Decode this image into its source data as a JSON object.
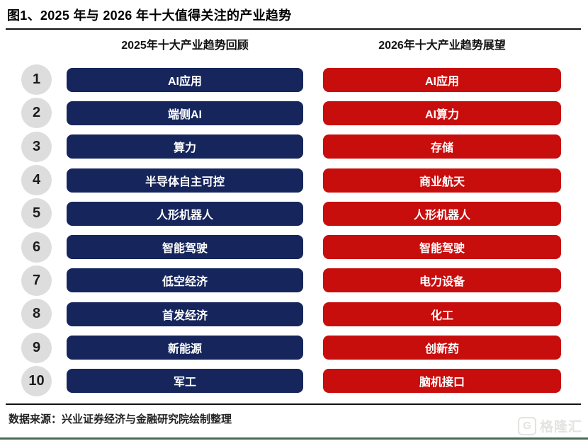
{
  "figure_title": "图1、2025 年与 2026 年十大值得关注的产业趋势",
  "columns": {
    "left_header": "2025年十大产业趋势回顾",
    "right_header": "2026年十大产业趋势展望"
  },
  "rows": [
    {
      "rank": "1",
      "left": "AI应用",
      "right": "AI应用"
    },
    {
      "rank": "2",
      "left": "端侧AI",
      "right": "AI算力"
    },
    {
      "rank": "3",
      "left": "算力",
      "right": "存储"
    },
    {
      "rank": "4",
      "left": "半导体自主可控",
      "right": "商业航天"
    },
    {
      "rank": "5",
      "left": "人形机器人",
      "right": "人形机器人"
    },
    {
      "rank": "6",
      "left": "智能驾驶",
      "right": "智能驾驶"
    },
    {
      "rank": "7",
      "left": "低空经济",
      "right": "电力设备"
    },
    {
      "rank": "8",
      "left": "首发经济",
      "right": "化工"
    },
    {
      "rank": "9",
      "left": "新能源",
      "right": "创新药"
    },
    {
      "rank": "10",
      "left": "军工",
      "right": "脑机接口"
    }
  ],
  "footer": {
    "source_text": "数据来源：兴业证券经济与金融研究院绘制整理"
  },
  "watermark": {
    "icon_letter": "G",
    "text": "格隆汇"
  },
  "colors": {
    "left_bar": "#16265C",
    "right_bar": "#C80D0D",
    "rank_circle": "#DDDDDD",
    "bottom_accent_line": "#4A6A58"
  },
  "chart_data": {
    "type": "table",
    "title": "图1、2025 年与 2026 年十大值得关注的产业趋势",
    "columns": [
      "排名",
      "2025年十大产业趋势回顾",
      "2026年十大产业趋势展望"
    ],
    "rows": [
      [
        "1",
        "AI应用",
        "AI应用"
      ],
      [
        "2",
        "端侧AI",
        "AI算力"
      ],
      [
        "3",
        "算力",
        "存储"
      ],
      [
        "4",
        "半导体自主可控",
        "商业航天"
      ],
      [
        "5",
        "人形机器人",
        "人形机器人"
      ],
      [
        "6",
        "智能驾驶",
        "智能驾驶"
      ],
      [
        "7",
        "低空经济",
        "电力设备"
      ],
      [
        "8",
        "首发经济",
        "化工"
      ],
      [
        "9",
        "新能源",
        "创新药"
      ],
      [
        "10",
        "军工",
        "脑机接口"
      ]
    ],
    "source": "数据来源：兴业证券经济与金融研究院绘制整理",
    "legend_position": "none",
    "grid": false
  }
}
